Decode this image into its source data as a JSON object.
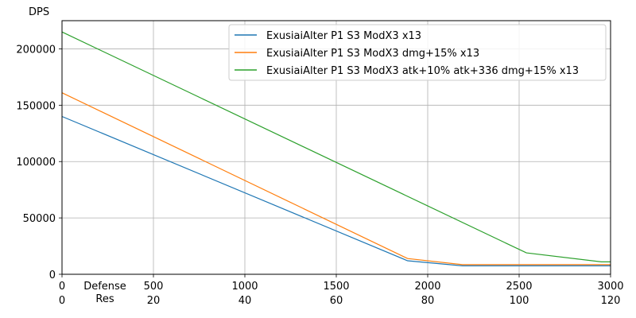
{
  "chart_data": {
    "type": "line",
    "ylabel": "DPS",
    "xlabel_lines": [
      "Defense",
      "Res"
    ],
    "x_ticks": [
      0,
      500,
      1000,
      1500,
      2000,
      2500,
      3000
    ],
    "x2_ticks": [
      0,
      20,
      40,
      60,
      80,
      100,
      120
    ],
    "y_ticks": [
      0,
      50000,
      100000,
      150000,
      200000
    ],
    "xlim": [
      0,
      3000
    ],
    "ylim": [
      0,
      225000
    ],
    "grid": true,
    "legend_position": "top-right",
    "colors": [
      "#1f77b4",
      "#ff7f0e",
      "#2ca02c"
    ],
    "series": [
      {
        "name": "ExusiaiAlter P1 S3 ModX3 x13",
        "x": [
          0,
          1890,
          2190,
          3000
        ],
        "y": [
          140000,
          12000,
          7500,
          7500
        ]
      },
      {
        "name": "ExusiaiAlter P1 S3 ModX3 dmg+15% x13",
        "x": [
          0,
          1890,
          2190,
          3000
        ],
        "y": [
          161000,
          14000,
          8500,
          8500
        ]
      },
      {
        "name": "ExusiaiAlter P1 S3 ModX3 atk+10% atk+336 dmg+15% x13",
        "x": [
          0,
          2540,
          2950,
          3000
        ],
        "y": [
          215000,
          19000,
          11000,
          11000
        ]
      }
    ]
  }
}
